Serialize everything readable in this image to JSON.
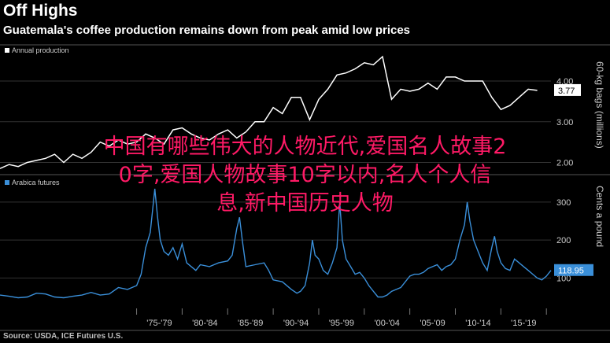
{
  "header": {
    "title": "Off Highs",
    "subtitle": "Guatemala's coffee production remains down from peak amid low prices"
  },
  "source": "Source: USDA, ICE Futures U.S.",
  "overlay": {
    "line1": "中国有哪些伟大的人物近代,爱国名人故事2",
    "line2": "0字,爱国人物故事10字以内,名人个人信",
    "line3": "息,新中国历史人物"
  },
  "colors": {
    "background": "#000000",
    "production_line": "#ffffff",
    "futures_line": "#3a8fd9",
    "grid": "#333333",
    "overlay_text": "#ff1a66"
  },
  "chart_data": [
    {
      "type": "line",
      "legend": "Annual production",
      "ylabel": "60-kg bags (millions)",
      "ylim": [
        1.7,
        4.6
      ],
      "yticks": [
        2.0,
        3.0,
        4.0
      ],
      "ytick_labels": [
        "2.00",
        "3.00",
        "4.00"
      ],
      "last_value_label": "3.77",
      "x": [
        1960,
        1961,
        1962,
        1963,
        1964,
        1965,
        1966,
        1967,
        1968,
        1969,
        1970,
        1971,
        1972,
        1973,
        1974,
        1975,
        1976,
        1977,
        1978,
        1979,
        1980,
        1981,
        1982,
        1983,
        1984,
        1985,
        1986,
        1987,
        1988,
        1989,
        1990,
        1991,
        1992,
        1993,
        1994,
        1995,
        1996,
        1997,
        1998,
        1999,
        2000,
        2001,
        2002,
        2003,
        2004,
        2005,
        2006,
        2007,
        2008,
        2009,
        2010,
        2011,
        2012,
        2013,
        2014,
        2015,
        2016,
        2017,
        2018,
        2019
      ],
      "values": [
        1.85,
        1.95,
        1.9,
        2.0,
        2.05,
        2.1,
        2.2,
        2.0,
        2.2,
        2.1,
        2.25,
        2.5,
        2.4,
        2.55,
        2.45,
        2.5,
        2.7,
        2.6,
        2.45,
        2.8,
        2.85,
        2.7,
        2.6,
        2.55,
        2.7,
        2.8,
        2.6,
        2.75,
        3.0,
        3.0,
        3.35,
        3.2,
        3.6,
        3.6,
        3.05,
        3.55,
        3.8,
        4.15,
        4.2,
        4.3,
        4.45,
        4.4,
        4.6,
        3.55,
        3.8,
        3.75,
        3.8,
        3.95,
        3.8,
        4.1,
        4.1,
        4.0,
        4.0,
        4.0,
        3.6,
        3.3,
        3.4,
        3.6,
        3.8,
        3.77
      ]
    },
    {
      "type": "line",
      "legend": "Arabica futures",
      "ylabel": "Cents a pound",
      "ylim": [
        20,
        335
      ],
      "yticks": [
        100,
        200,
        300
      ],
      "ytick_labels": [
        "100",
        "200",
        "300"
      ],
      "last_value_label": "118.95",
      "x": [
        1960.0,
        1961.0,
        1962.0,
        1963.0,
        1964.0,
        1965.0,
        1966.0,
        1967.0,
        1968.0,
        1969.0,
        1970.0,
        1971.0,
        1972.0,
        1973.0,
        1974.0,
        1975.0,
        1975.5,
        1976.0,
        1976.5,
        1977.0,
        1977.3,
        1977.6,
        1978.0,
        1978.5,
        1979.0,
        1979.5,
        1980.0,
        1980.5,
        1981.0,
        1981.5,
        1982.0,
        1983.0,
        1984.0,
        1985.0,
        1985.5,
        1986.0,
        1986.3,
        1986.6,
        1987.0,
        1988.0,
        1989.0,
        1989.5,
        1990.0,
        1991.0,
        1992.0,
        1992.6,
        1993.0,
        1993.5,
        1994.0,
        1994.3,
        1994.6,
        1995.0,
        1995.5,
        1996.0,
        1996.5,
        1997.0,
        1997.3,
        1997.6,
        1998.0,
        1998.5,
        1999.0,
        1999.5,
        2000.0,
        2000.5,
        2001.0,
        2001.5,
        2002.0,
        2002.5,
        2003.0,
        2004.0,
        2005.0,
        2005.5,
        2006.0,
        2006.5,
        2007.0,
        2008.0,
        2008.5,
        2009.0,
        2009.5,
        2010.0,
        2010.5,
        2011.0,
        2011.3,
        2011.6,
        2012.0,
        2012.5,
        2013.0,
        2013.5,
        2014.0,
        2014.3,
        2014.6,
        2015.0,
        2015.5,
        2016.0,
        2016.5,
        2017.0,
        2017.5,
        2018.0,
        2018.5,
        2019.0,
        2019.5,
        2020.0,
        2020.5
      ],
      "values": [
        55,
        52,
        48,
        50,
        60,
        58,
        50,
        48,
        52,
        55,
        62,
        55,
        58,
        75,
        70,
        80,
        110,
        180,
        220,
        335,
        260,
        200,
        170,
        160,
        180,
        150,
        190,
        140,
        130,
        120,
        135,
        130,
        140,
        145,
        160,
        230,
        260,
        200,
        130,
        135,
        140,
        120,
        95,
        90,
        70,
        60,
        65,
        80,
        140,
        200,
        160,
        150,
        120,
        110,
        140,
        180,
        300,
        200,
        150,
        130,
        110,
        115,
        100,
        80,
        65,
        50,
        50,
        55,
        65,
        75,
        105,
        110,
        110,
        115,
        125,
        135,
        120,
        130,
        135,
        150,
        200,
        240,
        300,
        250,
        200,
        170,
        140,
        120,
        180,
        210,
        170,
        140,
        125,
        120,
        150,
        140,
        130,
        120,
        110,
        100,
        95,
        105,
        120
      ]
    }
  ],
  "x_axis": {
    "tick_labels": [
      "'75-'79",
      "'80-'84",
      "'85-'89",
      "'90-'94",
      "'95-'99",
      "'00-'04",
      "'05-'09",
      "'10-'14",
      "'15-'19"
    ]
  }
}
